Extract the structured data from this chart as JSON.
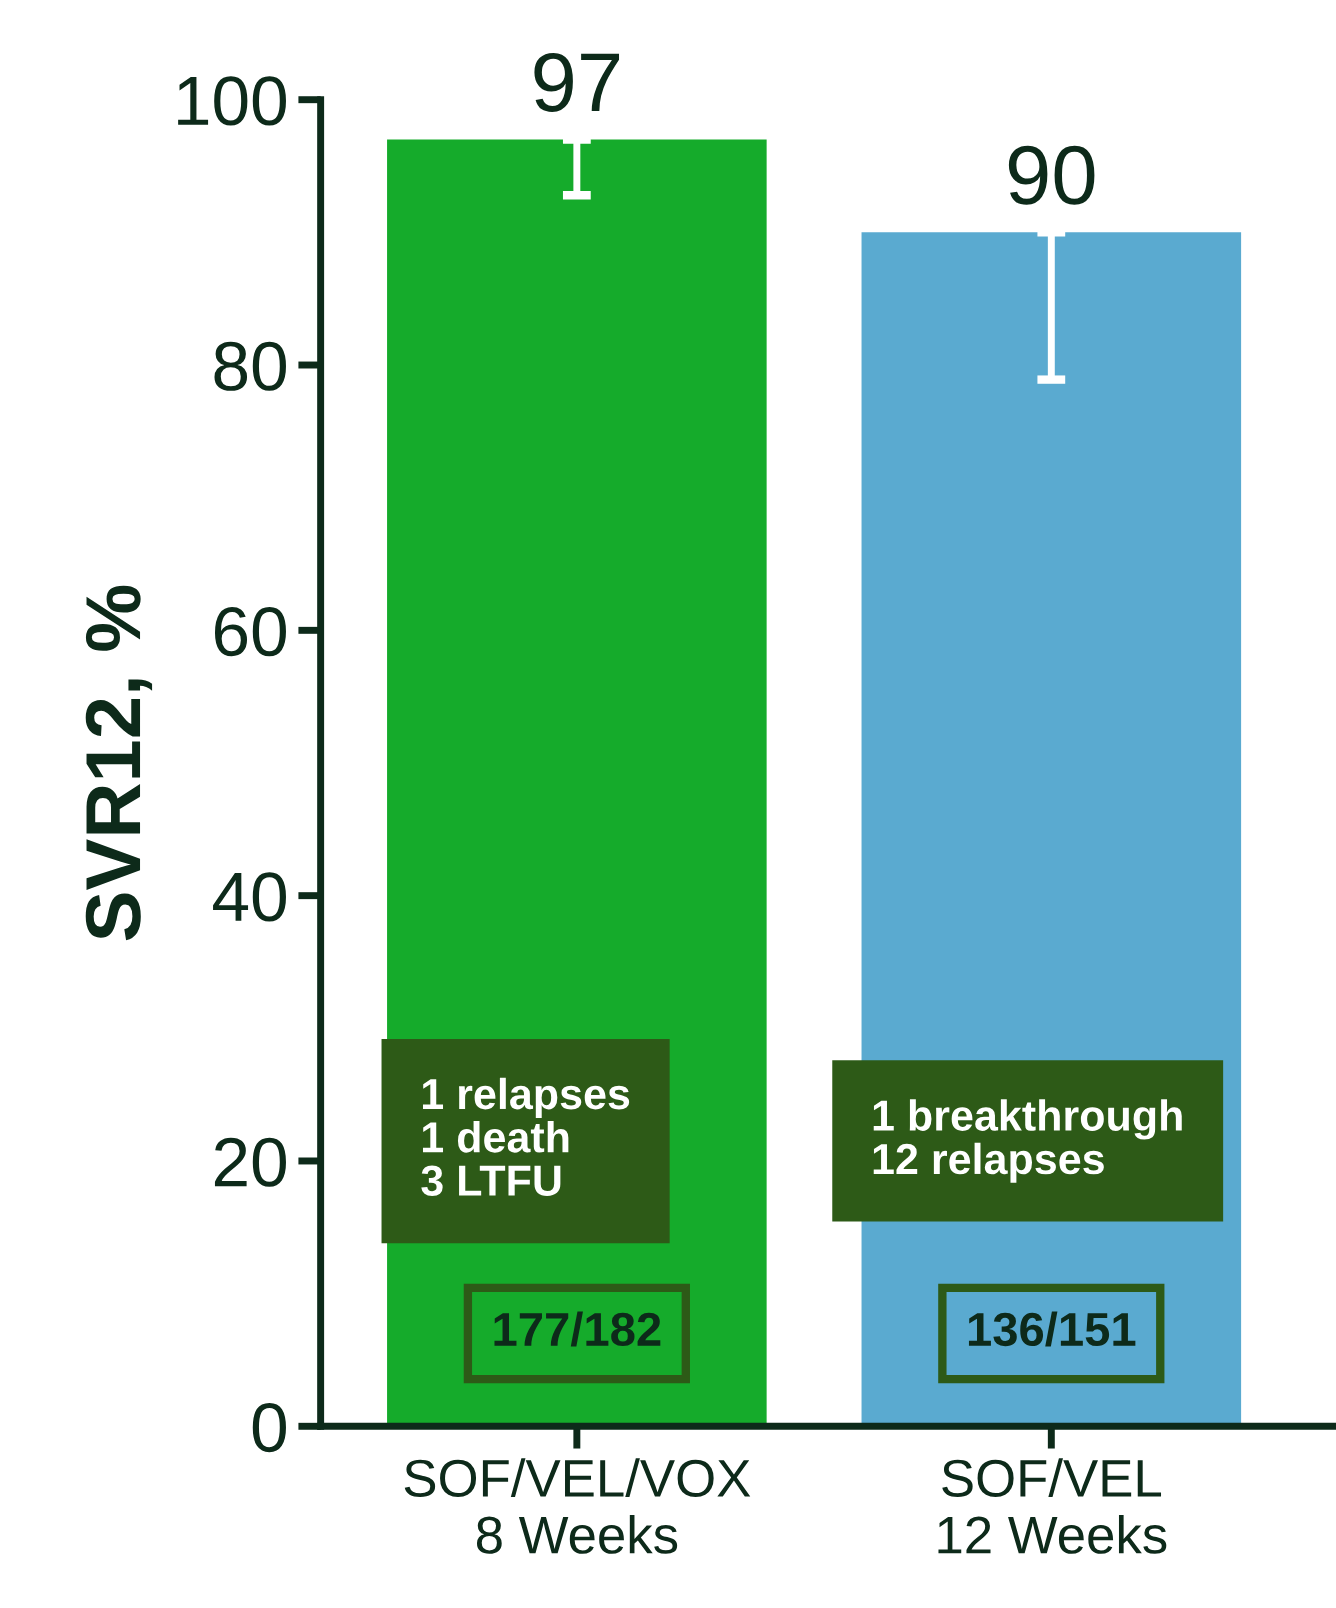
{
  "chart_data": {
    "type": "bar",
    "ylabel": "SVR12, %",
    "categories": [
      "SOF/VEL/VOX\n8 Weeks",
      "SOF/VEL\n12 Weeks"
    ],
    "values": [
      97,
      90
    ],
    "colors": [
      "#15ab2b",
      "#5aaad0"
    ],
    "errors": [
      [
        92.8,
        97
      ],
      [
        78.9,
        90
      ]
    ],
    "ylim": [
      0,
      100
    ],
    "yticks": [
      0,
      20,
      40,
      60,
      80,
      100
    ],
    "data_labels": true,
    "grid": false,
    "annotations": [
      "1 relapses\n1 death\n3 LTFU",
      "177/182",
      "1 breakthrough\n12 relapses",
      "136/151"
    ]
  }
}
